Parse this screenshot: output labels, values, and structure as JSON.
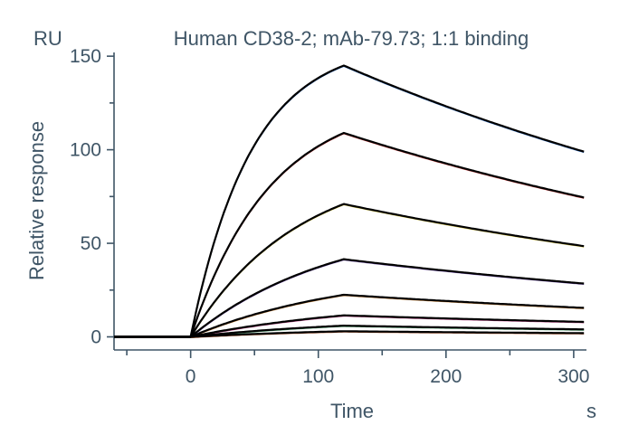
{
  "chart_data": {
    "type": "line",
    "title": "Human CD38-2; mAb-79.73; 1:1 binding",
    "xlabel": "Time",
    "ylabel": "Relative response",
    "x_unit": "s",
    "y_unit": "RU",
    "xlim": [
      -60,
      310
    ],
    "ylim": [
      -7,
      152
    ],
    "x_ticks": [
      0,
      100,
      200,
      300
    ],
    "y_ticks": [
      0,
      50,
      100,
      150
    ],
    "grid": false,
    "legend": "none",
    "association_end": 120,
    "dissociation_end": 308,
    "baseline_start": -60,
    "series": [
      {
        "peak": 145,
        "end": 99,
        "kon_rate": 0.021,
        "raw_color": "#3a7bd5"
      },
      {
        "peak": 109,
        "end": 74.5,
        "kon_rate": 0.016,
        "raw_color": "#d04040"
      },
      {
        "peak": 71,
        "end": 48.5,
        "kon_rate": 0.012,
        "raw_color": "#d9c94a"
      },
      {
        "peak": 41.5,
        "end": 28.5,
        "kon_rate": 0.009,
        "raw_color": "#7a5ab5"
      },
      {
        "peak": 22.5,
        "end": 15.5,
        "kon_rate": 0.008,
        "raw_color": "#d08a40"
      },
      {
        "peak": 11.5,
        "end": 8,
        "kon_rate": 0.007,
        "raw_color": "#c04a8a"
      },
      {
        "peak": 6,
        "end": 4,
        "kon_rate": 0.007,
        "raw_color": "#4aa06a"
      },
      {
        "peak": 3,
        "end": 2,
        "kon_rate": 0.007,
        "raw_color": "#b05a30"
      }
    ]
  }
}
